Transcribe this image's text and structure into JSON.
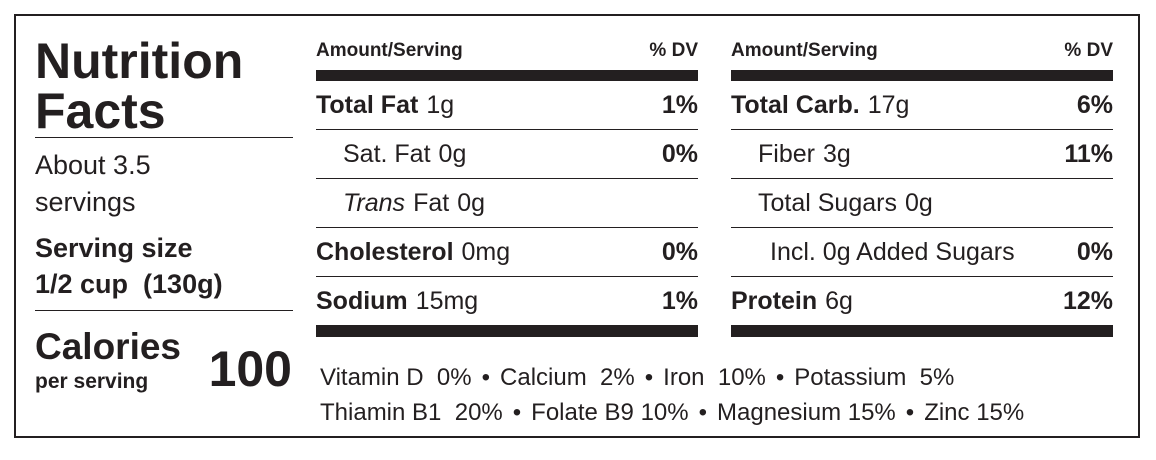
{
  "title_lines": [
    "Nutrition",
    "Facts"
  ],
  "servings_lines": [
    "About 3.5",
    "servings"
  ],
  "serving_size": {
    "label": "Serving size",
    "value": "1/2 cup  (130g)"
  },
  "calories": {
    "label": "Calories",
    "sublabel": "per serving",
    "value": 100
  },
  "tables": [
    {
      "header": {
        "amount": "Amount/Serving",
        "dv": "% DV"
      },
      "rows": [
        {
          "name_parts": [
            {
              "text": "Total Fat",
              "bold": true
            }
          ],
          "amount": "1g",
          "dv": "1%",
          "indent": 0
        },
        {
          "name_parts": [
            {
              "text": "Sat. Fat"
            }
          ],
          "amount": "0g",
          "dv": "0%",
          "indent": 1
        },
        {
          "name_parts": [
            {
              "text": "Trans",
              "italic": true
            },
            {
              "text": "Fat"
            }
          ],
          "amount": "0g",
          "indent": 1
        },
        {
          "name_parts": [
            {
              "text": "Cholesterol",
              "bold": true
            }
          ],
          "amount": "0mg",
          "dv": "0%",
          "indent": 0
        },
        {
          "name_parts": [
            {
              "text": "Sodium",
              "bold": true
            }
          ],
          "amount": "15mg",
          "dv": "1%",
          "indent": 0
        }
      ]
    },
    {
      "header": {
        "amount": "Amount/Serving",
        "dv": "% DV"
      },
      "rows": [
        {
          "name_parts": [
            {
              "text": "Total Carb.",
              "bold": true
            }
          ],
          "amount": "17g",
          "dv": "6%",
          "indent": 0
        },
        {
          "name_parts": [
            {
              "text": "Fiber"
            }
          ],
          "amount": "3g",
          "dv": "11%",
          "indent": 1
        },
        {
          "name_parts": [
            {
              "text": "Total Sugars"
            }
          ],
          "amount": "0g",
          "indent": 1
        },
        {
          "name_parts": [
            {
              "text": "Incl. 0g Added Sugars"
            }
          ],
          "dv": "0%",
          "indent": 2
        },
        {
          "name_parts": [
            {
              "text": "Protein",
              "bold": true
            }
          ],
          "amount": "6g",
          "dv": "12%",
          "indent": 0
        }
      ]
    }
  ],
  "separator": "•",
  "vitamin_lines": [
    [
      "Vitamin D  0%",
      "Calcium  2%",
      "Iron  10%",
      "Potassium  5%"
    ],
    [
      "Thiamin B1  20%",
      "Folate B9 10%",
      "Magnesium 15%",
      "Zinc 15%"
    ]
  ]
}
